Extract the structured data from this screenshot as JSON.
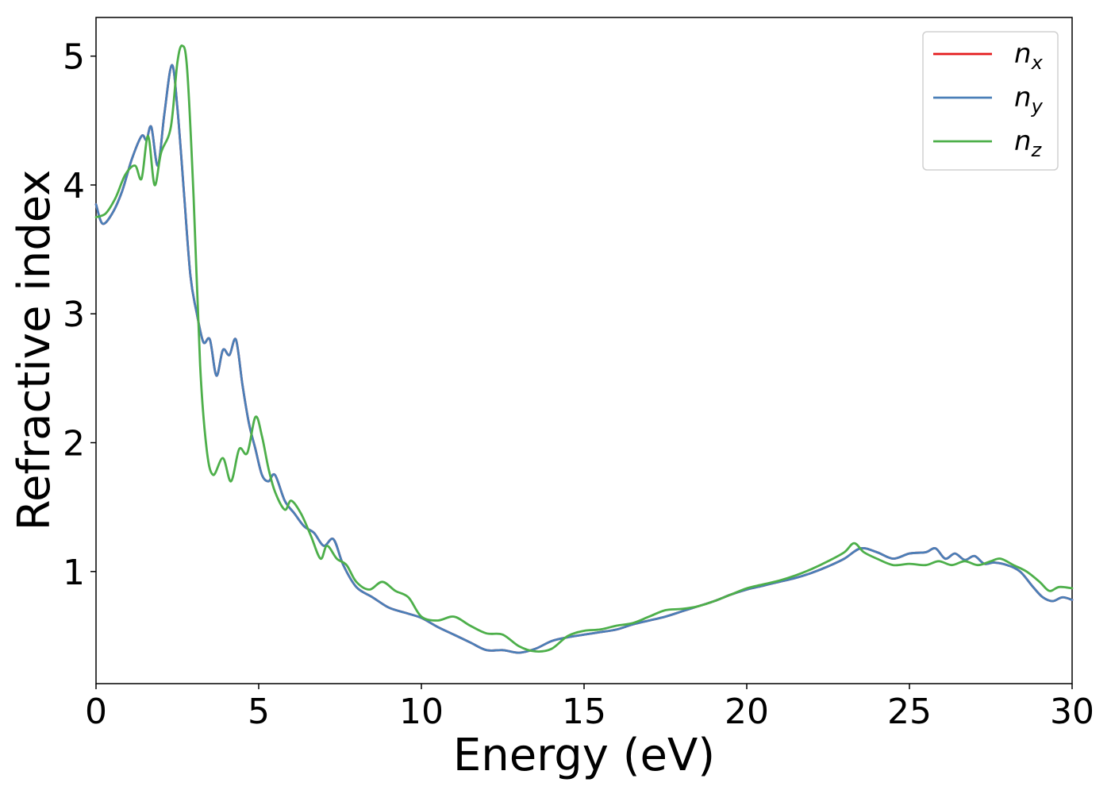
{
  "chart_data": {
    "type": "line",
    "xlabel": "Energy (eV)",
    "ylabel": "Refractive index",
    "xlim": [
      0,
      30
    ],
    "ylim": [
      0.13,
      5.3
    ],
    "xticks": [
      0,
      5,
      10,
      15,
      20,
      25,
      30
    ],
    "yticks": [
      1,
      2,
      3,
      4,
      5
    ],
    "grid": false,
    "legend_position": "top-right",
    "series": [
      {
        "name": "n",
        "subscript": "x",
        "color": "#e41a1c",
        "x": [
          0,
          0.2,
          0.5,
          0.8,
          1.1,
          1.4,
          1.55,
          1.7,
          1.9,
          2.1,
          2.33,
          2.5,
          2.7,
          2.9,
          3.1,
          3.3,
          3.5,
          3.7,
          3.9,
          4.1,
          4.3,
          4.5,
          4.7,
          4.9,
          5.1,
          5.3,
          5.5,
          5.8,
          6.1,
          6.4,
          6.7,
          7.0,
          7.3,
          7.6,
          8.0,
          8.5,
          9.0,
          9.5,
          10.0,
          10.5,
          11.0,
          11.5,
          12.0,
          12.5,
          13.0,
          13.5,
          14.0,
          14.5,
          15.0,
          15.5,
          16.0,
          16.5,
          17.0,
          17.5,
          18.0,
          18.5,
          19.0,
          19.5,
          20.0,
          20.5,
          21.0,
          21.5,
          22.0,
          22.5,
          23.0,
          23.5,
          24.0,
          24.5,
          25.0,
          25.5,
          25.8,
          26.1,
          26.4,
          26.7,
          27.0,
          27.3,
          27.6,
          28.0,
          28.4,
          28.8,
          29.1,
          29.4,
          29.7,
          30.0
        ],
        "values": [
          3.85,
          3.7,
          3.78,
          3.95,
          4.2,
          4.38,
          4.35,
          4.45,
          4.15,
          4.55,
          4.93,
          4.6,
          3.95,
          3.3,
          3.0,
          2.78,
          2.8,
          2.52,
          2.72,
          2.68,
          2.8,
          2.45,
          2.15,
          1.95,
          1.75,
          1.7,
          1.75,
          1.55,
          1.45,
          1.35,
          1.3,
          1.2,
          1.25,
          1.05,
          0.88,
          0.8,
          0.72,
          0.68,
          0.64,
          0.57,
          0.51,
          0.45,
          0.39,
          0.39,
          0.37,
          0.4,
          0.46,
          0.49,
          0.51,
          0.53,
          0.55,
          0.59,
          0.62,
          0.65,
          0.69,
          0.73,
          0.77,
          0.82,
          0.86,
          0.89,
          0.92,
          0.95,
          0.99,
          1.04,
          1.1,
          1.18,
          1.15,
          1.1,
          1.14,
          1.15,
          1.18,
          1.1,
          1.14,
          1.09,
          1.12,
          1.06,
          1.07,
          1.05,
          1.0,
          0.88,
          0.8,
          0.77,
          0.8,
          0.78
        ]
      },
      {
        "name": "n",
        "subscript": "y",
        "color": "#4a7fb8",
        "x": [
          0,
          0.2,
          0.5,
          0.8,
          1.1,
          1.4,
          1.55,
          1.7,
          1.9,
          2.1,
          2.33,
          2.5,
          2.7,
          2.9,
          3.1,
          3.3,
          3.5,
          3.7,
          3.9,
          4.1,
          4.3,
          4.5,
          4.7,
          4.9,
          5.1,
          5.3,
          5.5,
          5.8,
          6.1,
          6.4,
          6.7,
          7.0,
          7.3,
          7.6,
          8.0,
          8.5,
          9.0,
          9.5,
          10.0,
          10.5,
          11.0,
          11.5,
          12.0,
          12.5,
          13.0,
          13.5,
          14.0,
          14.5,
          15.0,
          15.5,
          16.0,
          16.5,
          17.0,
          17.5,
          18.0,
          18.5,
          19.0,
          19.5,
          20.0,
          20.5,
          21.0,
          21.5,
          22.0,
          22.5,
          23.0,
          23.5,
          24.0,
          24.5,
          25.0,
          25.5,
          25.8,
          26.1,
          26.4,
          26.7,
          27.0,
          27.3,
          27.6,
          28.0,
          28.4,
          28.8,
          29.1,
          29.4,
          29.7,
          30.0
        ],
        "values": [
          3.85,
          3.7,
          3.78,
          3.95,
          4.2,
          4.38,
          4.35,
          4.45,
          4.15,
          4.55,
          4.93,
          4.6,
          3.95,
          3.3,
          3.0,
          2.78,
          2.8,
          2.52,
          2.72,
          2.68,
          2.8,
          2.45,
          2.15,
          1.95,
          1.75,
          1.7,
          1.75,
          1.55,
          1.45,
          1.35,
          1.3,
          1.2,
          1.25,
          1.05,
          0.88,
          0.8,
          0.72,
          0.68,
          0.64,
          0.57,
          0.51,
          0.45,
          0.39,
          0.39,
          0.37,
          0.4,
          0.46,
          0.49,
          0.51,
          0.53,
          0.55,
          0.59,
          0.62,
          0.65,
          0.69,
          0.73,
          0.77,
          0.82,
          0.86,
          0.89,
          0.92,
          0.95,
          0.99,
          1.04,
          1.1,
          1.18,
          1.15,
          1.1,
          1.14,
          1.15,
          1.18,
          1.1,
          1.14,
          1.09,
          1.12,
          1.06,
          1.07,
          1.05,
          1.0,
          0.88,
          0.8,
          0.77,
          0.8,
          0.78
        ]
      },
      {
        "name": "n",
        "subscript": "z",
        "color": "#4daf4a",
        "x": [
          0,
          0.3,
          0.6,
          0.9,
          1.2,
          1.4,
          1.6,
          1.8,
          2.0,
          2.3,
          2.5,
          2.65,
          2.8,
          3.0,
          3.2,
          3.4,
          3.6,
          3.9,
          4.15,
          4.4,
          4.65,
          4.9,
          5.1,
          5.3,
          5.5,
          5.8,
          6.0,
          6.3,
          6.6,
          6.9,
          7.1,
          7.4,
          7.7,
          8.0,
          8.4,
          8.8,
          9.2,
          9.6,
          10.0,
          10.5,
          11.0,
          11.5,
          12.0,
          12.5,
          13.0,
          13.5,
          14.0,
          14.5,
          15.0,
          15.5,
          16.0,
          16.5,
          17.0,
          17.5,
          18.0,
          18.5,
          19.0,
          19.5,
          20.0,
          20.5,
          21.0,
          21.5,
          22.0,
          22.5,
          23.0,
          23.3,
          23.6,
          24.0,
          24.5,
          25.0,
          25.5,
          25.9,
          26.3,
          26.7,
          27.1,
          27.5,
          27.8,
          28.2,
          28.6,
          29.0,
          29.3,
          29.6,
          30.0
        ],
        "values": [
          3.75,
          3.78,
          3.9,
          4.08,
          4.15,
          4.05,
          4.38,
          4.0,
          4.25,
          4.45,
          4.95,
          5.08,
          4.9,
          3.9,
          2.6,
          1.95,
          1.75,
          1.88,
          1.7,
          1.95,
          1.92,
          2.2,
          2.05,
          1.8,
          1.62,
          1.48,
          1.55,
          1.45,
          1.28,
          1.1,
          1.2,
          1.1,
          1.05,
          0.92,
          0.86,
          0.92,
          0.85,
          0.8,
          0.65,
          0.62,
          0.65,
          0.58,
          0.52,
          0.51,
          0.42,
          0.38,
          0.4,
          0.5,
          0.54,
          0.55,
          0.58,
          0.6,
          0.65,
          0.7,
          0.71,
          0.73,
          0.77,
          0.82,
          0.87,
          0.9,
          0.93,
          0.97,
          1.02,
          1.08,
          1.15,
          1.22,
          1.15,
          1.1,
          1.05,
          1.06,
          1.05,
          1.08,
          1.05,
          1.08,
          1.05,
          1.08,
          1.1,
          1.05,
          1.0,
          0.92,
          0.85,
          0.88,
          0.87
        ]
      }
    ]
  }
}
